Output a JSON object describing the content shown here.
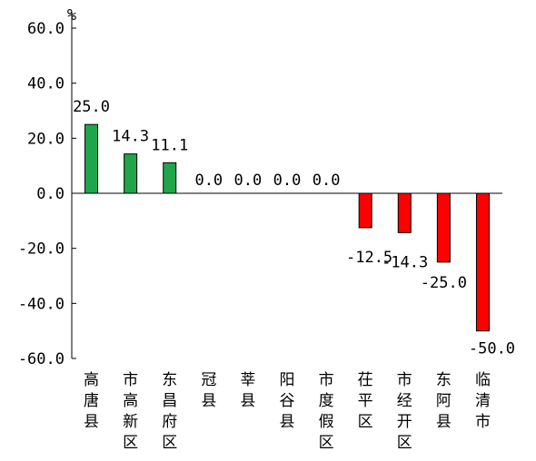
{
  "chart_data": {
    "type": "bar",
    "unit": "%",
    "categories": [
      "高唐县",
      "市高新区",
      "东昌府区",
      "冠县",
      "莘县",
      "阳谷县",
      "市度假区",
      "茌平区",
      "市经开区",
      "东阿县",
      "临清市"
    ],
    "values": [
      25.0,
      14.3,
      11.1,
      0.0,
      0.0,
      0.0,
      0.0,
      -12.5,
      -14.3,
      -25.0,
      -50.0
    ],
    "value_labels": [
      "25.0",
      "14.3",
      "11.1",
      "0.0",
      "0.0",
      "0.0",
      "0.0",
      "-12.5",
      "-14.3",
      "-25.0",
      "-50.0"
    ],
    "ylim": [
      -60,
      60
    ],
    "yticks": [
      60,
      40,
      20,
      0,
      -20,
      -40,
      -60
    ],
    "ytick_labels": [
      "60.0",
      "40.0",
      "20.0",
      "0.0",
      "-20.0",
      "-40.0",
      "-60.0"
    ],
    "grid": false,
    "colors": {
      "positive": "#1fa64a",
      "negative": "#ff0000",
      "axis": "#000000"
    }
  }
}
